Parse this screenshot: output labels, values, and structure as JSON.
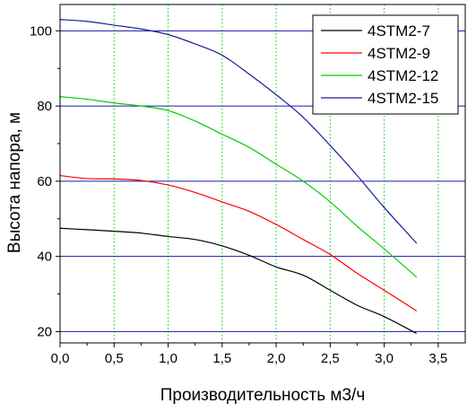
{
  "chart_data": {
    "type": "line",
    "title": "",
    "xlabel": "Производительность м3/ч",
    "ylabel": "Высота напора, м",
    "xlim": [
      0,
      3.75
    ],
    "ylim": [
      17,
      107
    ],
    "x_ticks": [
      0.0,
      0.5,
      1.0,
      1.5,
      2.0,
      2.5,
      3.0,
      3.5
    ],
    "x_tick_labels": [
      "0,0",
      "0,5",
      "1,0",
      "1,5",
      "2,0",
      "2,5",
      "3,0",
      "3,5"
    ],
    "y_ticks": [
      20,
      40,
      60,
      80,
      100
    ],
    "y_tick_labels": [
      "20",
      "40",
      "60",
      "80",
      "100"
    ],
    "grid": {
      "x": true,
      "y": true,
      "x_color": "#00cc00",
      "x_style": "dotted",
      "y_color": "#1a1aa6",
      "y_style": "solid"
    },
    "legend": {
      "position": "top-right"
    },
    "series": [
      {
        "name": "4STM2-7",
        "color": "#000000",
        "x": [
          0.0,
          0.25,
          0.5,
          0.75,
          1.0,
          1.25,
          1.5,
          1.75,
          2.0,
          2.25,
          2.5,
          2.75,
          3.0,
          3.3
        ],
        "y": [
          47.5,
          47.1,
          46.7,
          46.2,
          45.3,
          44.5,
          42.8,
          40.3,
          37.2,
          35.0,
          31.0,
          27.0,
          24.0,
          19.5
        ]
      },
      {
        "name": "4STM2-9",
        "color": "#ff0000",
        "x": [
          0.0,
          0.25,
          0.5,
          0.75,
          1.0,
          1.25,
          1.5,
          1.75,
          2.0,
          2.25,
          2.5,
          2.75,
          3.0,
          3.3
        ],
        "y": [
          61.5,
          60.7,
          60.6,
          60.2,
          59.0,
          57.0,
          54.5,
          52.0,
          48.5,
          44.5,
          40.5,
          35.5,
          31.0,
          25.5
        ]
      },
      {
        "name": "4STM2-12",
        "color": "#00d000",
        "x": [
          0.0,
          0.25,
          0.5,
          0.75,
          1.0,
          1.25,
          1.5,
          1.75,
          2.0,
          2.25,
          2.5,
          2.75,
          3.0,
          3.3
        ],
        "y": [
          82.5,
          81.8,
          80.8,
          80.0,
          78.8,
          76.0,
          72.5,
          69.0,
          64.5,
          60.0,
          54.5,
          48.0,
          42.0,
          34.5
        ]
      },
      {
        "name": "4STM2-15",
        "color": "#1a1a9c",
        "x": [
          0.0,
          0.25,
          0.5,
          0.75,
          1.0,
          1.25,
          1.5,
          1.75,
          2.0,
          2.25,
          2.5,
          2.75,
          3.0,
          3.3
        ],
        "y": [
          103.0,
          102.5,
          101.5,
          100.5,
          99.0,
          96.5,
          93.5,
          88.5,
          83.0,
          77.0,
          69.5,
          61.5,
          53.0,
          43.5
        ]
      }
    ]
  }
}
